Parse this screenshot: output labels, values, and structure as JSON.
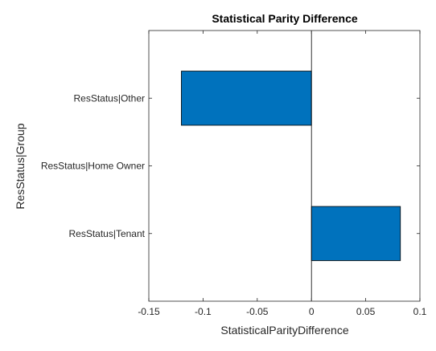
{
  "chart_data": {
    "type": "bar",
    "orientation": "horizontal",
    "title": "Statistical Parity Difference",
    "xlabel": "StatisticalParityDifference",
    "ylabel": "ResStatus|Group",
    "categories": [
      "ResStatus|Other",
      "ResStatus|Home Owner",
      "ResStatus|Tenant"
    ],
    "values": [
      -0.12,
      0,
      0.082
    ],
    "xlim": [
      -0.15,
      0.1
    ],
    "xticks": [
      -0.15,
      -0.1,
      -0.05,
      0,
      0.05,
      0.1
    ],
    "xtick_labels": [
      "-0.15",
      "-0.1",
      "-0.05",
      "0",
      "0.05",
      "0.1"
    ],
    "bar_color": "#0072BD",
    "grid": false,
    "legend": "none"
  }
}
